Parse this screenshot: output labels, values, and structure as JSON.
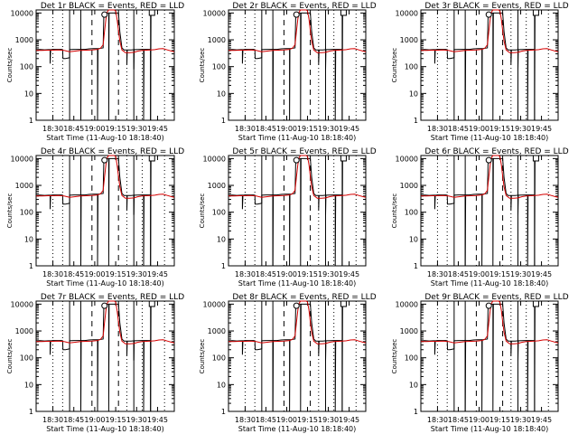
{
  "chart_data": [
    {
      "type": "line",
      "title": "Det 1r BLACK = Events, RED = LLD",
      "xlabel": "Start Time (11-Aug-10 18:18:40)",
      "ylabel": "Counts/sec"
    },
    {
      "type": "line",
      "title": "Det 2r BLACK = Events, RED = LLD",
      "xlabel": "Start Time (11-Aug-10 18:18:40)",
      "ylabel": "Counts/sec"
    },
    {
      "type": "line",
      "title": "Det 3r BLACK = Events, RED = LLD",
      "xlabel": "Start Time (11-Aug-10 18:18:40)",
      "ylabel": "Counts/sec"
    },
    {
      "type": "line",
      "title": "Det 4r BLACK = Events, RED = LLD",
      "xlabel": "Start Time (11-Aug-10 18:18:40)",
      "ylabel": "Counts/sec"
    },
    {
      "type": "line",
      "title": "Det 5r BLACK = Events, RED = LLD",
      "xlabel": "Start Time (11-Aug-10 18:18:40)",
      "ylabel": "Counts/sec"
    },
    {
      "type": "line",
      "title": "Det 6r BLACK = Events, RED = LLD",
      "xlabel": "Start Time (11-Aug-10 18:18:40)",
      "ylabel": "Counts/sec"
    },
    {
      "type": "line",
      "title": "Det 7r BLACK = Events, RED = LLD",
      "xlabel": "Start Time (11-Aug-10 18:18:40)",
      "ylabel": "Counts/sec"
    },
    {
      "type": "line",
      "title": "Det 8r BLACK = Events, RED = LLD",
      "xlabel": "Start Time (11-Aug-10 18:18:40)",
      "ylabel": "Counts/sec"
    },
    {
      "type": "line",
      "title": "Det 9r BLACK = Events, RED = LLD",
      "xlabel": "Start Time (11-Aug-10 18:18:40)",
      "ylabel": "Counts/sec"
    }
  ],
  "shared_axes": {
    "x_ticks": [
      "18:30",
      "18:45",
      "19:00",
      "19:15",
      "19:30",
      "19:45"
    ],
    "x_tick_minutes": [
      30,
      45,
      60,
      75,
      90,
      105
    ],
    "xlim_minutes": [
      18,
      117
    ],
    "y_ticks": [
      "1",
      "10",
      "100",
      "1000",
      "10000"
    ],
    "y_tick_values": [
      1,
      10,
      100,
      1000,
      10000
    ],
    "ylim": [
      1,
      13000
    ],
    "y_scale": "log"
  },
  "series": [
    {
      "name": "Events",
      "color": "#000000",
      "points": [
        [
          18,
          430
        ],
        [
          21,
          432
        ],
        [
          24,
          425
        ],
        [
          27,
          430
        ],
        [
          28,
          430
        ],
        [
          28,
          130
        ],
        [
          28.4,
          430
        ],
        [
          30,
          440
        ],
        [
          33,
          440
        ],
        [
          36,
          440
        ],
        [
          37,
          430
        ],
        [
          37.2,
          200
        ],
        [
          39,
          200
        ],
        [
          41,
          210
        ],
        [
          42,
          215
        ],
        [
          42,
          430
        ],
        [
          45,
          440
        ],
        [
          48,
          440
        ],
        [
          50,
          440
        ],
        [
          50,
          1
        ],
        [
          50.3,
          440
        ],
        [
          53,
          440
        ],
        [
          56,
          460
        ],
        [
          59,
          470
        ],
        [
          62,
          470
        ],
        [
          62,
          1
        ],
        [
          62.3,
          470
        ],
        [
          66,
          500
        ],
        [
          66.5,
          10000
        ],
        [
          70,
          10000
        ],
        [
          70,
          1
        ],
        [
          70.3,
          10000
        ],
        [
          74,
          10000
        ],
        [
          74,
          10000
        ],
        [
          77,
          10000
        ],
        [
          78,
          2000
        ],
        [
          79.5,
          500
        ],
        [
          81,
          420
        ],
        [
          83,
          420
        ],
        [
          83,
          120
        ],
        [
          83.3,
          420
        ],
        [
          86,
          420
        ],
        [
          88,
          430
        ],
        [
          88,
          80
        ],
        [
          88.3,
          430
        ],
        [
          91,
          435
        ],
        [
          94,
          440
        ],
        [
          95,
          440
        ],
        [
          95,
          1
        ],
        [
          95.3,
          440
        ],
        [
          98,
          440
        ],
        [
          100,
          440
        ],
        [
          100,
          1
        ],
        [
          100.3,
          12000
        ],
        [
          103,
          12000
        ],
        [
          103,
          12000
        ]
      ]
    },
    {
      "name": "LLD",
      "color": "#d40000",
      "points": [
        [
          18,
          400
        ],
        [
          22,
          400
        ],
        [
          26,
          410
        ],
        [
          30,
          410
        ],
        [
          34,
          420
        ],
        [
          38,
          400
        ],
        [
          42,
          360
        ],
        [
          46,
          380
        ],
        [
          50,
          400
        ],
        [
          54,
          410
        ],
        [
          58,
          420
        ],
        [
          62,
          440
        ],
        [
          64,
          480
        ],
        [
          66,
          650
        ],
        [
          67,
          2000
        ],
        [
          68,
          6000
        ],
        [
          69,
          11000
        ],
        [
          70,
          13000
        ],
        [
          72,
          13000
        ],
        [
          74,
          13000
        ],
        [
          75,
          12000
        ],
        [
          76,
          6000
        ],
        [
          77,
          2200
        ],
        [
          78,
          900
        ],
        [
          79.5,
          420
        ],
        [
          82,
          330
        ],
        [
          85,
          330
        ],
        [
          88,
          340
        ],
        [
          91,
          380
        ],
        [
          94,
          400
        ],
        [
          97,
          410
        ],
        [
          100,
          420
        ],
        [
          103,
          430
        ],
        [
          106,
          460
        ],
        [
          109,
          470
        ],
        [
          112,
          420
        ],
        [
          115,
          380
        ],
        [
          117,
          360
        ]
      ]
    }
  ],
  "reference_lines": [
    {
      "style": "dotted",
      "x_minutes": 30
    },
    {
      "style": "dotted",
      "x_minutes": 37
    },
    {
      "style": "dotted",
      "x_minutes": 83
    },
    {
      "style": "dotted",
      "x_minutes": 94
    },
    {
      "style": "solid",
      "x_minutes": 42
    },
    {
      "style": "solid",
      "x_minutes": 50
    },
    {
      "style": "solid",
      "x_minutes": 88
    },
    {
      "style": "solid",
      "x_minutes": 100
    },
    {
      "style": "dashed",
      "x_minutes": 58
    },
    {
      "style": "dashed",
      "x_minutes": 77
    },
    {
      "style": "dotted",
      "x_minutes": 110
    }
  ],
  "markers": [
    {
      "x_minutes": 67,
      "y": 11000,
      "shape": "circle"
    },
    {
      "x_minutes": 101,
      "y": 13000,
      "shape": "square"
    }
  ]
}
